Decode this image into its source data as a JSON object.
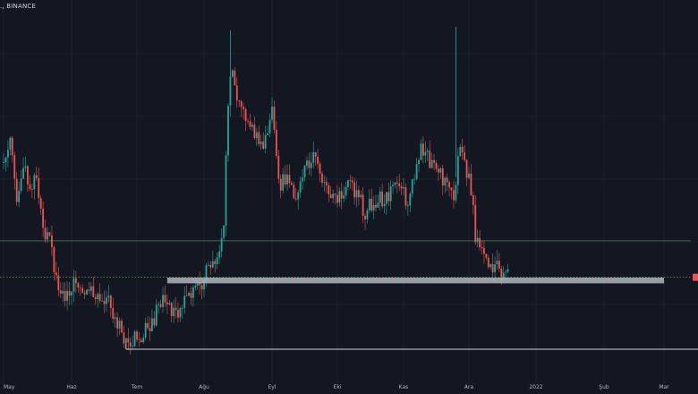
{
  "header": {
    "symbol_fragment": "., BINANCE"
  },
  "colors": {
    "background": "#131722",
    "up": "#26a69a",
    "down": "#ef5350",
    "grid": "#1e2230",
    "support_zone": "#b2b5be",
    "support_line": "#d1d4dc",
    "level_green": "#2e7d32",
    "level_red": "#ef5350",
    "price_tag": "#ef5350"
  },
  "chart_data": {
    "type": "candlestick",
    "title": "",
    "xlabel": "",
    "ylabel": "",
    "x_ticks": [
      "May",
      "Haz",
      "Tem",
      "Ağu",
      "Eyl",
      "Eki",
      "Kas",
      "Ara",
      "2022",
      "Şub",
      "Mar"
    ],
    "ylim": [
      0,
      100
    ],
    "path_points": [
      [
        "2021-05-01",
        62
      ],
      [
        "2021-05-04",
        70
      ],
      [
        "2021-05-07",
        52
      ],
      [
        "2021-05-10",
        62
      ],
      [
        "2021-05-13",
        54
      ],
      [
        "2021-05-16",
        58
      ],
      [
        "2021-05-19",
        44
      ],
      [
        "2021-05-22",
        40
      ],
      [
        "2021-05-25",
        30
      ],
      [
        "2021-05-28",
        24
      ],
      [
        "2021-05-31",
        26
      ],
      [
        "2021-06-03",
        29
      ],
      [
        "2021-06-06",
        27
      ],
      [
        "2021-06-09",
        26
      ],
      [
        "2021-06-12",
        24
      ],
      [
        "2021-06-15",
        25
      ],
      [
        "2021-06-18",
        23
      ],
      [
        "2021-06-21",
        20
      ],
      [
        "2021-06-24",
        14
      ],
      [
        "2021-06-27",
        12
      ],
      [
        "2021-06-30",
        13
      ],
      [
        "2021-07-03",
        14
      ],
      [
        "2021-07-06",
        16
      ],
      [
        "2021-07-09",
        18
      ],
      [
        "2021-07-12",
        24
      ],
      [
        "2021-07-15",
        22
      ],
      [
        "2021-07-18",
        20
      ],
      [
        "2021-07-21",
        22
      ],
      [
        "2021-07-24",
        24
      ],
      [
        "2021-07-27",
        25
      ],
      [
        "2021-07-30",
        27
      ],
      [
        "2021-08-02",
        31
      ],
      [
        "2021-08-05",
        34
      ],
      [
        "2021-08-08",
        38
      ],
      [
        "2021-08-10",
        44
      ],
      [
        "2021-08-12",
        80
      ],
      [
        "2021-08-14",
        88
      ],
      [
        "2021-08-17",
        78
      ],
      [
        "2021-08-20",
        74
      ],
      [
        "2021-08-24",
        70
      ],
      [
        "2021-08-28",
        68
      ],
      [
        "2021-09-01",
        76
      ],
      [
        "2021-09-03",
        64
      ],
      [
        "2021-09-05",
        56
      ],
      [
        "2021-09-08",
        58
      ],
      [
        "2021-09-12",
        52
      ],
      [
        "2021-09-16",
        60
      ],
      [
        "2021-09-20",
        66
      ],
      [
        "2021-09-24",
        56
      ],
      [
        "2021-09-28",
        52
      ],
      [
        "2021-10-02",
        52
      ],
      [
        "2021-10-06",
        56
      ],
      [
        "2021-10-10",
        54
      ],
      [
        "2021-10-14",
        48
      ],
      [
        "2021-10-18",
        52
      ],
      [
        "2021-10-22",
        52
      ],
      [
        "2021-10-26",
        54
      ],
      [
        "2021-10-30",
        56
      ],
      [
        "2021-11-03",
        50
      ],
      [
        "2021-11-06",
        58
      ],
      [
        "2021-11-09",
        66
      ],
      [
        "2021-11-12",
        64
      ],
      [
        "2021-11-15",
        60
      ],
      [
        "2021-11-18",
        58
      ],
      [
        "2021-11-21",
        56
      ],
      [
        "2021-11-24",
        54
      ],
      [
        "2021-11-27",
        66
      ],
      [
        "2021-11-30",
        60
      ],
      [
        "2021-12-02",
        54
      ],
      [
        "2021-12-04",
        42
      ],
      [
        "2021-12-07",
        38
      ],
      [
        "2021-12-10",
        32
      ],
      [
        "2021-12-13",
        34
      ],
      [
        "2021-12-16",
        30
      ],
      [
        "2021-12-19",
        32
      ]
    ],
    "spikes": [
      [
        "2021-08-13",
        99
      ],
      [
        "2021-11-25",
        100
      ]
    ],
    "candle_period_days": 1,
    "support_zone": {
      "x_start": "2021-07-15",
      "x_end": "2022-03-01",
      "y_low": 28.4,
      "y_high": 30
    },
    "support_line": {
      "x_start": "2021-06-26",
      "x_end": "2022-03-31",
      "y": 10
    },
    "horizontal_levels": [
      {
        "y": 40.3,
        "color": "#2e7d32",
        "style": "solid"
      },
      {
        "y": 30.1,
        "color": "#ef5350",
        "style": "dotted"
      }
    ],
    "price_tag": {
      "y": 30.1,
      "color": "#ef5350"
    },
    "grid": true,
    "legend": "none"
  }
}
